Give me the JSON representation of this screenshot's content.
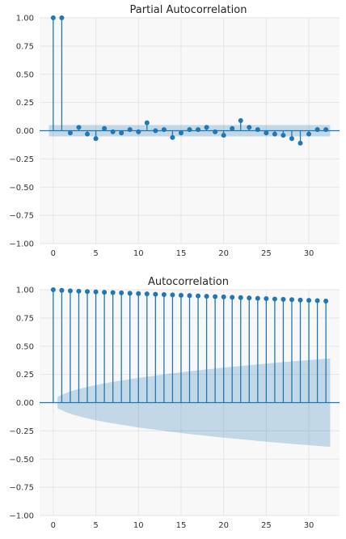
{
  "chart_data": [
    {
      "type": "stem",
      "title": "Partial Autocorrelation",
      "xlabel": "",
      "ylabel": "",
      "x": [
        0,
        1,
        2,
        3,
        4,
        5,
        6,
        7,
        8,
        9,
        10,
        11,
        12,
        13,
        14,
        15,
        16,
        17,
        18,
        19,
        20,
        21,
        22,
        23,
        24,
        25,
        26,
        27,
        28,
        29,
        30,
        31,
        32
      ],
      "values": [
        1.0,
        1.0,
        -0.02,
        0.03,
        -0.03,
        -0.07,
        0.02,
        -0.01,
        -0.02,
        0.01,
        -0.01,
        0.07,
        0.0,
        0.01,
        -0.06,
        -0.02,
        0.01,
        0.01,
        0.03,
        -0.01,
        -0.04,
        0.02,
        0.09,
        0.03,
        0.01,
        -0.02,
        -0.03,
        -0.04,
        -0.07,
        -0.11,
        -0.03,
        0.01,
        0.01
      ],
      "confidence_band": {
        "x": [
          -0.5,
          32.5
        ],
        "upper": [
          0.05,
          0.05
        ],
        "lower": [
          -0.05,
          -0.05
        ]
      },
      "xlim": [
        -1.6,
        33.6
      ],
      "ylim": [
        -1.0,
        1.0
      ],
      "xticks": [
        0,
        5,
        10,
        15,
        20,
        25,
        30
      ],
      "yticks": [
        1.0,
        0.75,
        0.5,
        0.25,
        0.0,
        -0.25,
        -0.5,
        -0.75,
        -1.0
      ],
      "xtick_labels": [
        "0",
        "5",
        "10",
        "15",
        "20",
        "25",
        "30"
      ],
      "ytick_labels": [
        "1.00",
        "0.75",
        "0.50",
        "0.25",
        "0.00",
        "−0.25",
        "−0.50",
        "−0.75",
        "−1.00"
      ],
      "grid": true,
      "colors": {
        "stem": "#1f77b4",
        "band": "#1f77b4",
        "grid": "#e5e5e5",
        "background": "#f8f8f8"
      }
    },
    {
      "type": "stem",
      "title": "Autocorrelation",
      "xlabel": "",
      "ylabel": "",
      "x": [
        0,
        1,
        2,
        3,
        4,
        5,
        6,
        7,
        8,
        9,
        10,
        11,
        12,
        13,
        14,
        15,
        16,
        17,
        18,
        19,
        20,
        21,
        22,
        23,
        24,
        25,
        26,
        27,
        28,
        29,
        30,
        31,
        32
      ],
      "values": [
        1.0,
        0.995,
        0.99,
        0.987,
        0.984,
        0.981,
        0.978,
        0.975,
        0.972,
        0.969,
        0.966,
        0.963,
        0.96,
        0.957,
        0.954,
        0.951,
        0.948,
        0.945,
        0.942,
        0.939,
        0.936,
        0.933,
        0.93,
        0.927,
        0.924,
        0.921,
        0.918,
        0.915,
        0.912,
        0.909,
        0.906,
        0.903,
        0.9
      ],
      "confidence_band": {
        "x": [
          0.5,
          1.5,
          2.5,
          3.5,
          4.5,
          5.5,
          6.5,
          7.5,
          8.5,
          9.5,
          10.5,
          11.5,
          12.5,
          13.5,
          14.5,
          15.5,
          16.5,
          17.5,
          18.5,
          19.5,
          20.5,
          21.5,
          22.5,
          23.5,
          24.5,
          25.5,
          26.5,
          27.5,
          28.5,
          29.5,
          30.5,
          31.5,
          32.5
        ],
        "upper": [
          0.05,
          0.085,
          0.11,
          0.13,
          0.148,
          0.163,
          0.177,
          0.19,
          0.202,
          0.214,
          0.225,
          0.235,
          0.245,
          0.255,
          0.264,
          0.273,
          0.282,
          0.29,
          0.298,
          0.306,
          0.314,
          0.321,
          0.328,
          0.335,
          0.342,
          0.349,
          0.356,
          0.362,
          0.368,
          0.374,
          0.38,
          0.386,
          0.392
        ],
        "lower": [
          -0.05,
          -0.085,
          -0.11,
          -0.13,
          -0.148,
          -0.163,
          -0.177,
          -0.19,
          -0.202,
          -0.214,
          -0.225,
          -0.235,
          -0.245,
          -0.255,
          -0.264,
          -0.273,
          -0.282,
          -0.29,
          -0.298,
          -0.306,
          -0.314,
          -0.321,
          -0.328,
          -0.335,
          -0.342,
          -0.349,
          -0.356,
          -0.362,
          -0.368,
          -0.374,
          -0.38,
          -0.386,
          -0.392
        ]
      },
      "xlim": [
        -1.6,
        33.6
      ],
      "ylim": [
        -1.0,
        1.0
      ],
      "xticks": [
        0,
        5,
        10,
        15,
        20,
        25,
        30
      ],
      "yticks": [
        1.0,
        0.75,
        0.5,
        0.25,
        0.0,
        -0.25,
        -0.5,
        -0.75,
        -1.0
      ],
      "xtick_labels": [
        "0",
        "5",
        "10",
        "15",
        "20",
        "25",
        "30"
      ],
      "ytick_labels": [
        "1.00",
        "0.75",
        "0.50",
        "0.25",
        "0.00",
        "−0.25",
        "−0.50",
        "−0.75",
        "−1.00"
      ],
      "grid": true,
      "colors": {
        "stem": "#1f77b4",
        "band": "#1f77b4",
        "grid": "#e5e5e5",
        "background": "#f8f8f8"
      }
    }
  ]
}
